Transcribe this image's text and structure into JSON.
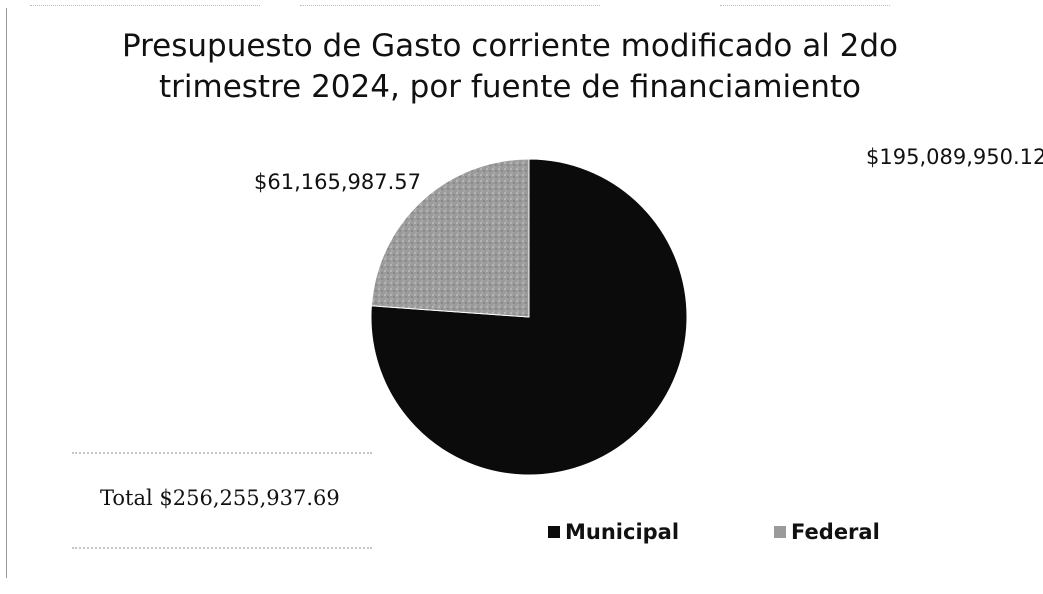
{
  "chart_data": {
    "type": "pie",
    "title": "Presupuesto de Gasto corriente modificado al 2do trimestre 2024, por fuente de financiamiento",
    "title_lines": [
      "Presupuesto de Gasto corriente modificado al 2do",
      "trimestre 2024, por fuente de financiamiento"
    ],
    "categories": [
      "Municipal",
      "Federal"
    ],
    "values": [
      195089950.12,
      61165987.57
    ],
    "data_labels": [
      "$195,089,950.12",
      "$61,165,987.57"
    ],
    "colors": [
      "#0b0b0b",
      "#9a9a9a"
    ],
    "legend_position": "bottom-right",
    "total_label": "Total $256,255,937.69"
  }
}
